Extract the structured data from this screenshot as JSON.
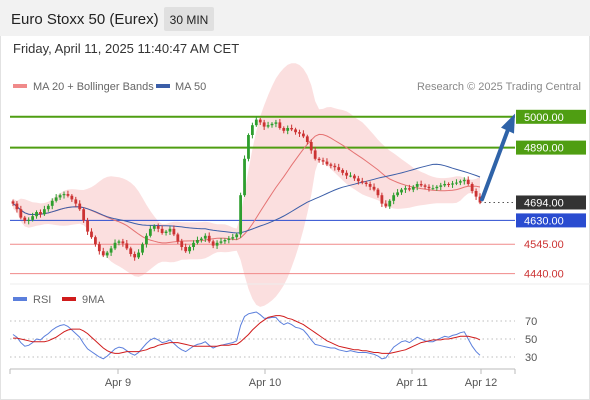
{
  "header": {
    "title": "Euro Stoxx 50 (Eurex)",
    "timeframe": "30 MIN",
    "timestamp": "Friday, April 11, 2025 11:40:47 AM CET"
  },
  "legend": {
    "ma20": "MA 20 + Bollinger Bands",
    "ma50": "MA 50",
    "credit": "Research © 2025 Trading Central"
  },
  "colors": {
    "up": "#2e9e2e",
    "down": "#cc3333",
    "ma20": "#e57373",
    "ma50": "#3b5ea8",
    "band": "#f9d4d4",
    "resistance": "#4f9e12",
    "support": "#f08a8a",
    "pivot": "#2a4cd0",
    "arrow": "#2f63a8",
    "rsi": "#5b7fdc",
    "rsi_ma": "#d01c1c"
  },
  "chart_data": [
    {
      "type": "candlestick",
      "title": "",
      "ylim": [
        4410,
        5060
      ],
      "x_ticks": [
        "Apr 9",
        "Apr 10",
        "Apr 11",
        "Apr 12"
      ],
      "levels": [
        {
          "label": "5000.00",
          "value": 5000,
          "kind": "resistance"
        },
        {
          "label": "4890.00",
          "value": 4890,
          "kind": "resistance"
        },
        {
          "label": "4694.00",
          "value": 4694,
          "kind": "last"
        },
        {
          "label": "4630.00",
          "value": 4630,
          "kind": "pivot"
        },
        {
          "label": "4545.00",
          "value": 4545,
          "kind": "support"
        },
        {
          "label": "4440.00",
          "value": 4440,
          "kind": "support"
        }
      ],
      "closes": [
        4690,
        4670,
        4640,
        4628,
        4632,
        4645,
        4660,
        4652,
        4670,
        4682,
        4700,
        4712,
        4720,
        4724,
        4718,
        4705,
        4690,
        4670,
        4630,
        4590,
        4570,
        4545,
        4520,
        4505,
        4515,
        4530,
        4550,
        4555,
        4548,
        4530,
        4510,
        4498,
        4515,
        4545,
        4575,
        4600,
        4610,
        4600,
        4585,
        4590,
        4600,
        4580,
        4555,
        4535,
        4520,
        4535,
        4550,
        4560,
        4565,
        4575,
        4555,
        4540,
        4550,
        4555,
        4560,
        4565,
        4570,
        4580,
        4720,
        4850,
        4935,
        4970,
        4990,
        4980,
        4965,
        4970,
        4975,
        4980,
        4960,
        4950,
        4960,
        4955,
        4945,
        4940,
        4930,
        4910,
        4880,
        4850,
        4845,
        4840,
        4830,
        4825,
        4820,
        4810,
        4800,
        4790,
        4790,
        4780,
        4770,
        4765,
        4760,
        4750,
        4740,
        4720,
        4690,
        4680,
        4700,
        4720,
        4730,
        4740,
        4745,
        4740,
        4750,
        4760,
        4755,
        4750,
        4745,
        4745,
        4750,
        4755,
        4760,
        4758,
        4762,
        4765,
        4770,
        4775,
        4760,
        4735,
        4715,
        4694
      ]
    },
    {
      "type": "line",
      "title": "",
      "ylim": [
        20,
        80
      ],
      "y_ticks": [
        70,
        50,
        30
      ],
      "series": [
        {
          "name": "RSI",
          "values": [
            55,
            52,
            46,
            42,
            43,
            46,
            50,
            49,
            53,
            56,
            60,
            63,
            65,
            66,
            64,
            60,
            56,
            52,
            45,
            39,
            36,
            33,
            30,
            28,
            31,
            35,
            39,
            41,
            40,
            37,
            34,
            32,
            35,
            40,
            45,
            49,
            51,
            49,
            46,
            47,
            49,
            45,
            41,
            38,
            36,
            39,
            42,
            44,
            45,
            47,
            43,
            40,
            42,
            43,
            44,
            45,
            46,
            48,
            65,
            75,
            78,
            79,
            80,
            77,
            73,
            73,
            74,
            74,
            69,
            66,
            68,
            66,
            63,
            62,
            60,
            55,
            49,
            44,
            43,
            42,
            41,
            40,
            40,
            38,
            37,
            36,
            37,
            36,
            35,
            35,
            35,
            34,
            33,
            31,
            28,
            29,
            35,
            41,
            44,
            47,
            48,
            46,
            49,
            52,
            50,
            48,
            47,
            47,
            49,
            51,
            53,
            52,
            54,
            55,
            57,
            58,
            50,
            42,
            36,
            32
          ]
        },
        {
          "name": "9MA",
          "values": [
            51,
            51,
            50,
            49,
            48,
            47,
            47,
            47,
            47,
            48,
            50,
            52,
            55,
            58,
            60,
            61,
            61,
            61,
            59,
            56,
            52,
            48,
            44,
            40,
            37,
            35,
            34,
            34,
            35,
            36,
            36,
            36,
            36,
            37,
            38,
            40,
            41,
            43,
            44,
            45,
            46,
            46,
            46,
            45,
            44,
            43,
            42,
            42,
            42,
            42,
            42,
            42,
            42,
            43,
            43,
            43,
            44,
            44,
            47,
            51,
            55,
            60,
            64,
            68,
            71,
            74,
            75,
            76,
            76,
            75,
            73,
            72,
            70,
            68,
            66,
            63,
            60,
            57,
            54,
            51,
            48,
            46,
            44,
            42,
            41,
            40,
            39,
            38,
            38,
            37,
            37,
            36,
            35,
            35,
            34,
            34,
            34,
            35,
            36,
            37,
            38,
            40,
            42,
            44,
            46,
            47,
            48,
            49,
            49,
            49,
            50,
            50,
            51,
            52,
            53,
            53,
            53,
            52,
            51,
            49
          ]
        }
      ]
    }
  ]
}
